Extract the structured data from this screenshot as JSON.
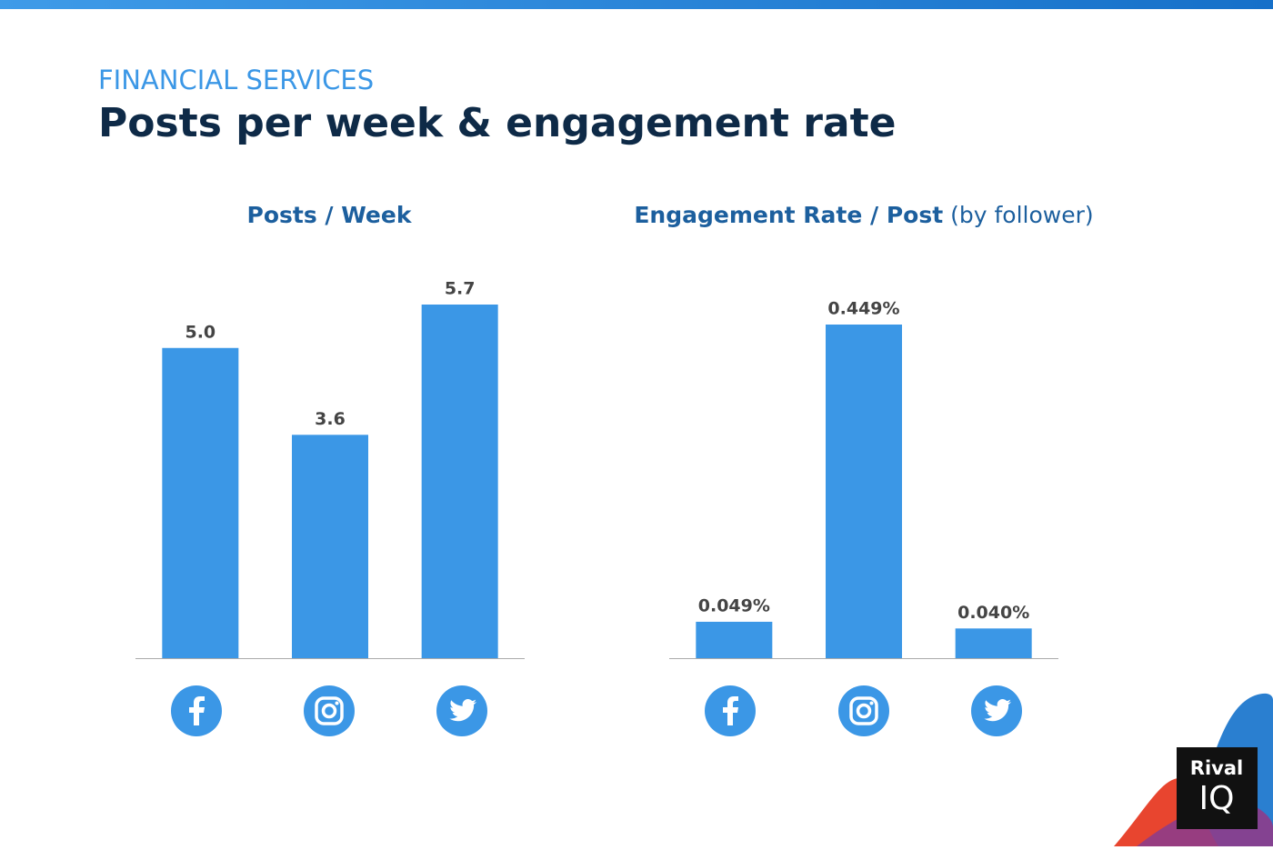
{
  "header": {
    "kicker": "FINANCIAL SERVICES",
    "title": "Posts per week & engagement rate"
  },
  "chart_data": [
    {
      "type": "bar",
      "title": "Posts / Week",
      "categories": [
        null,
        null,
        null
      ],
      "values": [
        5.0,
        3.6,
        5.7
      ],
      "value_labels": [
        "5.0",
        "3.6",
        "5.7"
      ],
      "color": "#3b97e6"
    },
    {
      "type": "bar",
      "title": "Engagement Rate / Post",
      "subtitle": "(by follower)",
      "categories": [
        null,
        null,
        null
      ],
      "values": [
        0.049,
        0.449,
        0.04
      ],
      "value_labels": [
        "0.049%",
        "0.449%",
        "0.040%"
      ],
      "color": "#3b97e6"
    }
  ],
  "logo": {
    "line1": "Rival",
    "line2": "IQ"
  }
}
